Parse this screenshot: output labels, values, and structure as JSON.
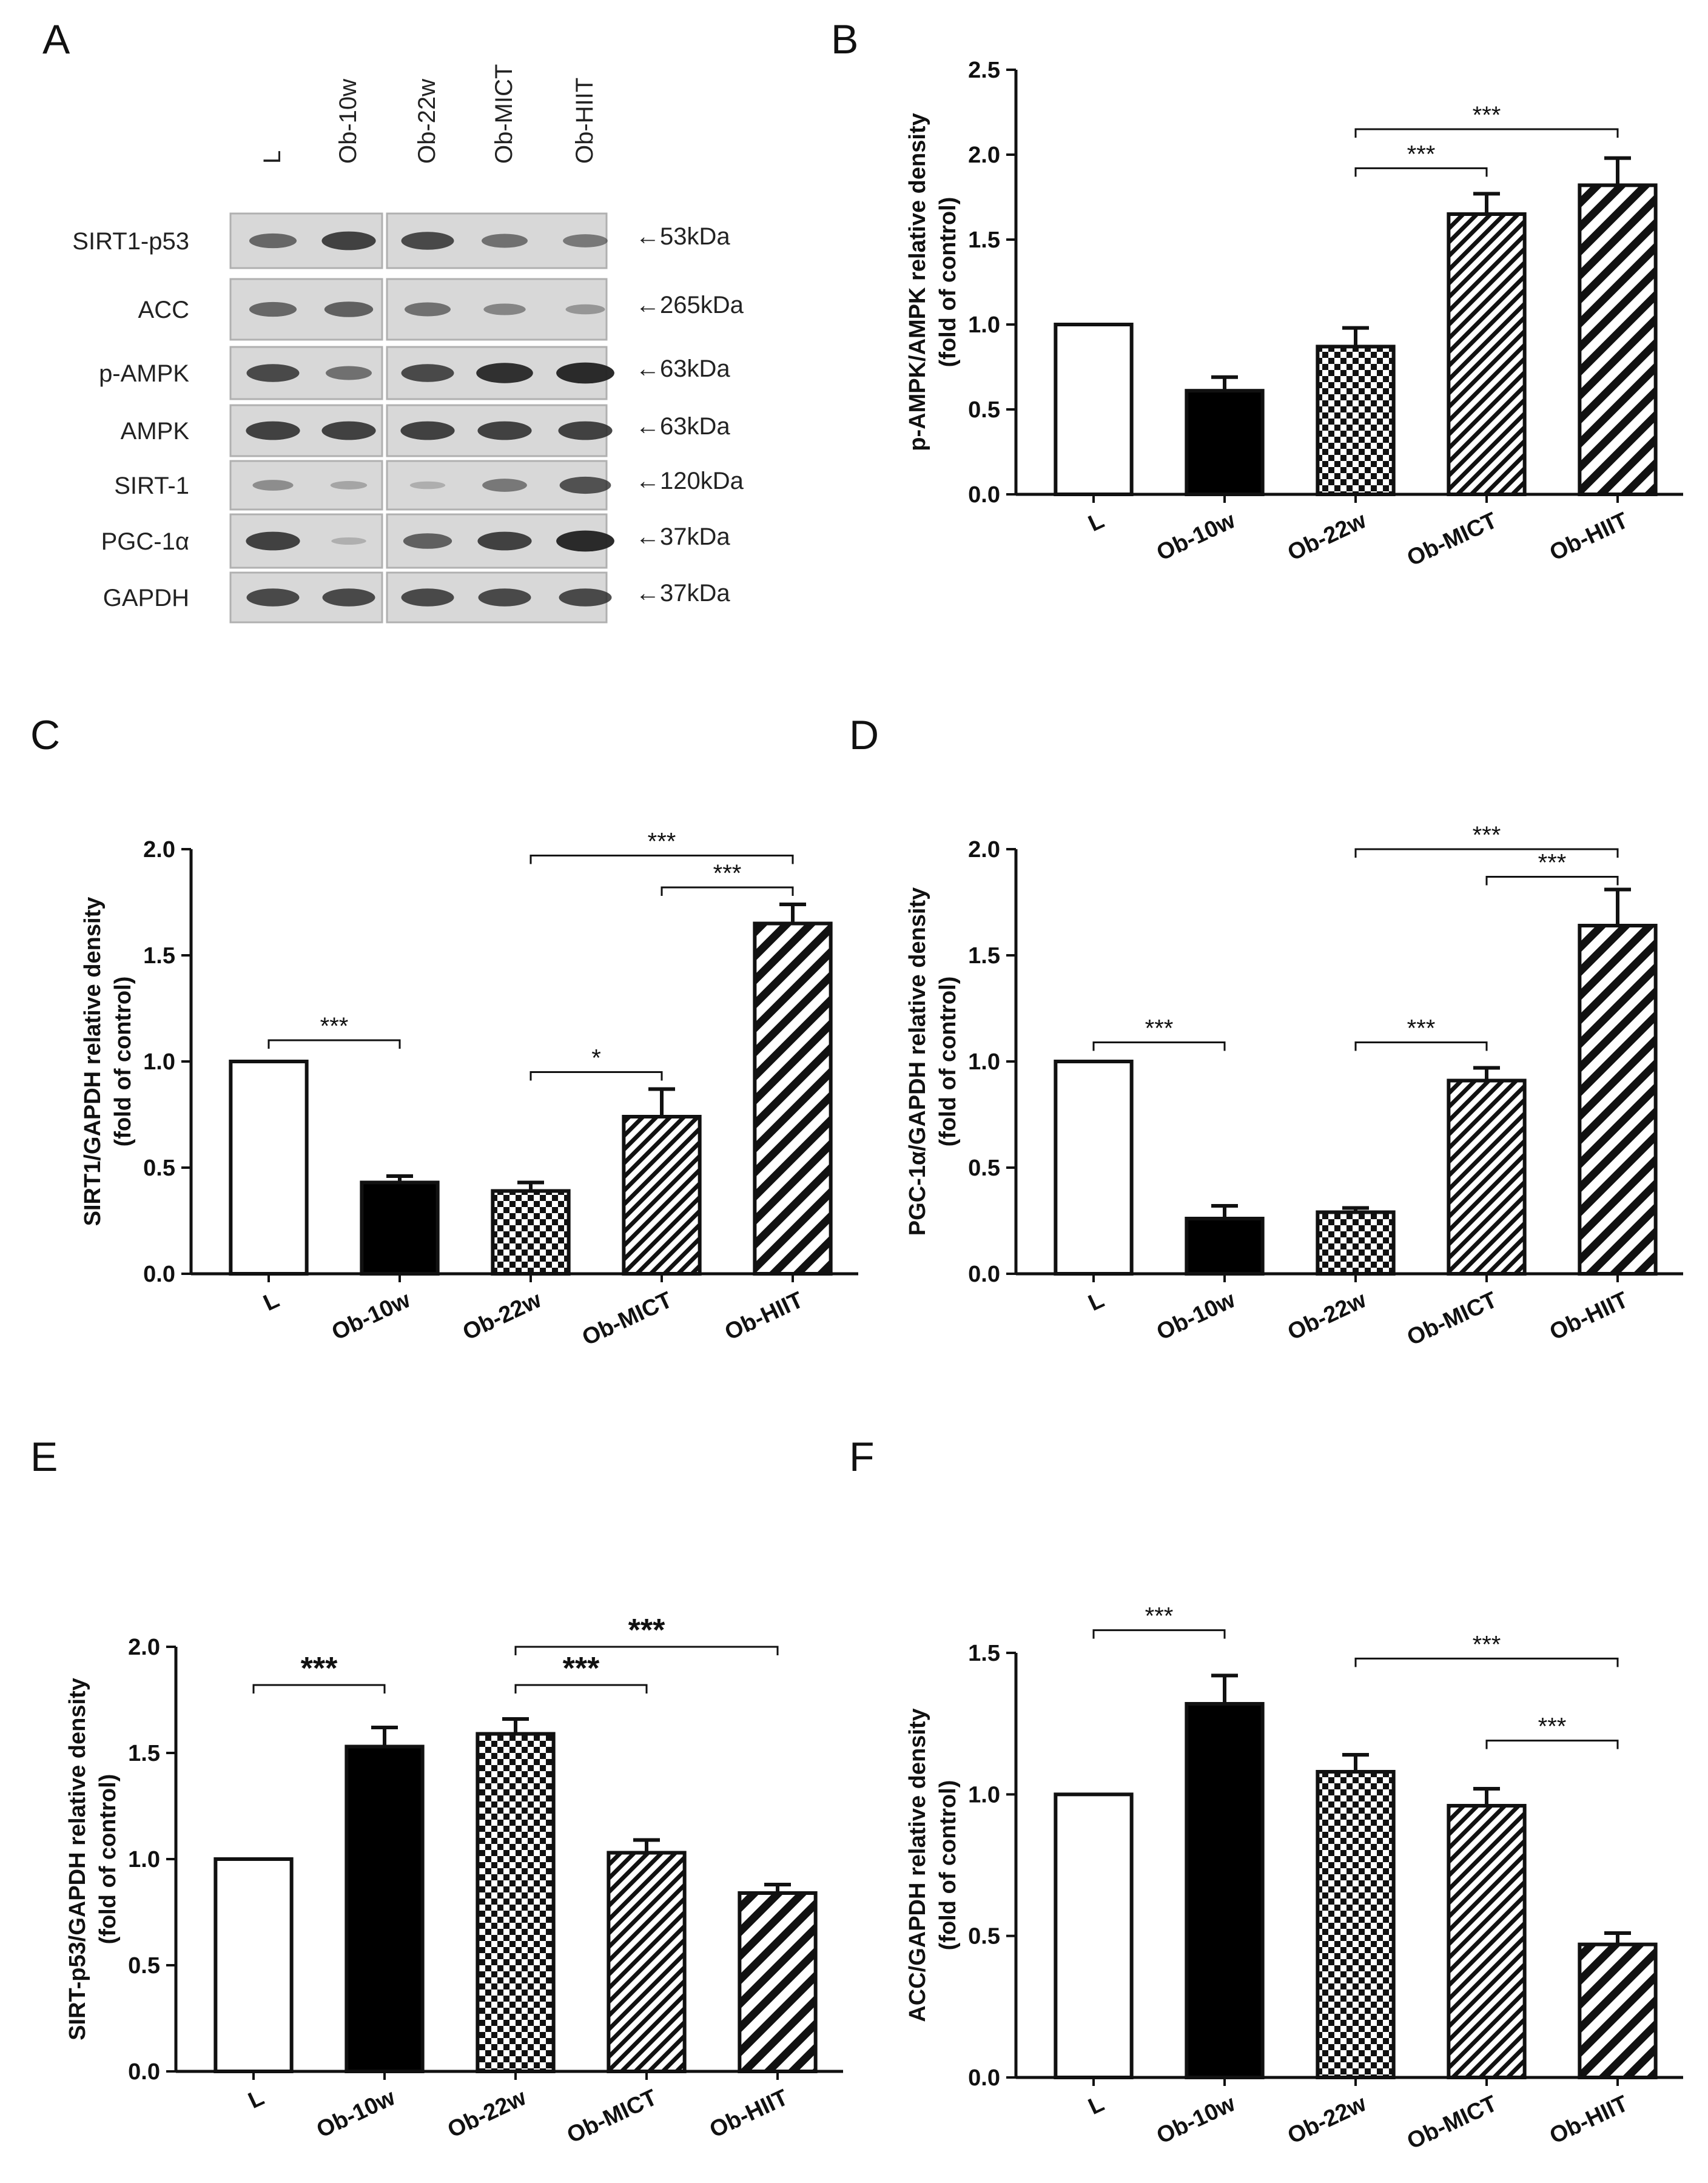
{
  "colors": {
    "ink": "#111111",
    "white": "#ffffff",
    "black": "#000000",
    "blot_bg": "#d6d6d6",
    "band": "#262626"
  },
  "blot": {
    "panel": "A",
    "lanes": [
      "L",
      "Ob-10w",
      "Ob-22w",
      "Ob-MICT",
      "Ob-HIIT"
    ],
    "rows": [
      {
        "protein": "SIRT1-p53",
        "kda": "←53kDa",
        "bands": [
          0.55,
          0.8,
          0.75,
          0.5,
          0.45
        ]
      },
      {
        "protein": "ACC",
        "kda": "←265kDa",
        "bands": [
          0.55,
          0.6,
          0.5,
          0.35,
          0.25
        ]
      },
      {
        "protein": "p-AMPK",
        "kda": "←63kDa",
        "bands": [
          0.75,
          0.5,
          0.75,
          0.9,
          0.95
        ]
      },
      {
        "protein": "AMPK",
        "kda": "←63kDa",
        "bands": [
          0.8,
          0.8,
          0.8,
          0.8,
          0.8
        ]
      },
      {
        "protein": "SIRT-1",
        "kda": "←120kDa",
        "bands": [
          0.3,
          0.15,
          0.1,
          0.45,
          0.7
        ]
      },
      {
        "protein": "PGC-1α",
        "kda": "←37kDa",
        "bands": [
          0.8,
          0.08,
          0.6,
          0.8,
          0.95
        ]
      },
      {
        "protein": "GAPDH",
        "kda": "←37kDa",
        "bands": [
          0.75,
          0.75,
          0.75,
          0.75,
          0.75
        ]
      }
    ]
  },
  "chart_data": [
    {
      "panel": "B",
      "type": "bar",
      "ylabel": "p-AMPK/AMPK relative density",
      "ylabel2": "(fold of control)",
      "ylim": [
        0,
        2.5
      ],
      "yticks": [
        "0.0",
        "0.5",
        "1.0",
        "1.5",
        "2.0",
        "2.5"
      ],
      "categories": [
        "L",
        "Ob-10w",
        "Ob-22w",
        "Ob-MICT",
        "Ob-HIIT"
      ],
      "values": [
        1.0,
        0.61,
        0.87,
        1.65,
        1.82
      ],
      "errors": [
        0,
        0.08,
        0.11,
        0.12,
        0.16
      ],
      "annotations": [
        {
          "from": 2,
          "to": 3,
          "label": "***",
          "y": 1.92
        },
        {
          "from": 2,
          "to": 4,
          "label": "***",
          "y": 2.15
        }
      ]
    },
    {
      "panel": "C",
      "type": "bar",
      "ylabel": "SIRT1/GAPDH relative density",
      "ylabel2": "(fold of control)",
      "ylim": [
        0,
        2.0
      ],
      "yticks": [
        "0.0",
        "0.5",
        "1.0",
        "1.5",
        "2.0"
      ],
      "categories": [
        "L",
        "Ob-10w",
        "Ob-22w",
        "Ob-MICT",
        "Ob-HIIT"
      ],
      "values": [
        1.0,
        0.43,
        0.39,
        0.74,
        1.65
      ],
      "errors": [
        0,
        0.03,
        0.04,
        0.13,
        0.09
      ],
      "annotations": [
        {
          "from": 0,
          "to": 1,
          "label": "***",
          "y": 1.1
        },
        {
          "from": 2,
          "to": 3,
          "label": "*",
          "y": 0.95
        },
        {
          "from": 3,
          "to": 4,
          "label": "***",
          "y": 1.82
        },
        {
          "from": 2,
          "to": 4,
          "label": "***",
          "y": 1.97
        }
      ]
    },
    {
      "panel": "D",
      "type": "bar",
      "ylabel": "PGC-1α/GAPDH relative density",
      "ylabel2": "(fold of control)",
      "ylim": [
        0,
        2.0
      ],
      "yticks": [
        "0.0",
        "0.5",
        "1.0",
        "1.5",
        "2.0"
      ],
      "categories": [
        "L",
        "Ob-10w",
        "Ob-22w",
        "Ob-MICT",
        "Ob-HIIT"
      ],
      "values": [
        1.0,
        0.26,
        0.29,
        0.91,
        1.64
      ],
      "errors": [
        0,
        0.06,
        0.02,
        0.06,
        0.17
      ],
      "annotations": [
        {
          "from": 0,
          "to": 1,
          "label": "***",
          "y": 1.09
        },
        {
          "from": 2,
          "to": 3,
          "label": "***",
          "y": 1.09
        },
        {
          "from": 3,
          "to": 4,
          "label": "***",
          "y": 1.87
        },
        {
          "from": 2,
          "to": 4,
          "label": "***",
          "y": 2.0
        }
      ]
    },
    {
      "panel": "E",
      "type": "bar",
      "ylabel": "SIRT-p53/GAPDH relative density",
      "ylabel2": "(fold of control)",
      "ylim": [
        0,
        2.0
      ],
      "yticks": [
        "0.0",
        "0.5",
        "1.0",
        "1.5",
        "2.0"
      ],
      "categories": [
        "L",
        "Ob-10w",
        "Ob-22w",
        "Ob-MICT",
        "Ob-HIIT"
      ],
      "values": [
        1.0,
        1.53,
        1.59,
        1.03,
        0.84
      ],
      "errors": [
        0,
        0.09,
        0.07,
        0.06,
        0.04
      ],
      "annotations": [
        {
          "from": 0,
          "to": 1,
          "label": "***",
          "y": 1.82,
          "big": true
        },
        {
          "from": 2,
          "to": 3,
          "label": "***",
          "y": 1.82,
          "big": true
        },
        {
          "from": 2,
          "to": 4,
          "label": "***",
          "y": 2.0,
          "big": true
        }
      ]
    },
    {
      "panel": "F",
      "type": "bar",
      "ylabel": "ACC/GAPDH relative density",
      "ylabel2": "(fold of control)",
      "ylim": [
        0,
        1.5
      ],
      "yticks": [
        "0.0",
        "0.5",
        "1.0",
        "1.5"
      ],
      "categories": [
        "L",
        "Ob-10w",
        "Ob-22w",
        "Ob-MICT",
        "Ob-HIIT"
      ],
      "values": [
        1.0,
        1.32,
        1.08,
        0.96,
        0.47
      ],
      "errors": [
        0,
        0.1,
        0.06,
        0.06,
        0.04
      ],
      "annotations": [
        {
          "from": 0,
          "to": 1,
          "label": "***",
          "y": 1.58
        },
        {
          "from": 2,
          "to": 4,
          "label": "***",
          "y": 1.48
        },
        {
          "from": 3,
          "to": 4,
          "label": "***",
          "y": 1.19
        }
      ]
    }
  ]
}
